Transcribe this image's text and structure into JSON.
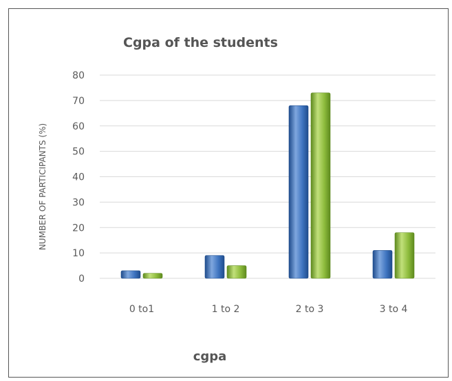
{
  "chart_data": {
    "type": "bar",
    "title": "Cgpa of the students",
    "xlabel": "cgpa",
    "ylabel": "NUMBER  OF PARTICIPANTS  (%)",
    "categories": [
      "0 to1",
      "1 to 2",
      "2 to 3",
      "3 to 4"
    ],
    "series": [
      {
        "values": [
          3,
          9,
          68,
          11
        ]
      },
      {
        "values": [
          2,
          5,
          73,
          18
        ]
      }
    ],
    "ylim": [
      0,
      80
    ],
    "yticks": [
      "0",
      "10",
      "20",
      "30",
      "40",
      "50",
      "60",
      "70",
      "80"
    ],
    "grid": true,
    "legend": "none"
  },
  "colors": {
    "series": [
      "#3E74C0",
      "#8DBB3C"
    ],
    "series_dark": [
      "#1F4C8C",
      "#5E8A1E"
    ],
    "series_light": [
      "#7FA7DE",
      "#C1E07A"
    ],
    "grid": "#D9D9D9",
    "text": "#595959"
  }
}
